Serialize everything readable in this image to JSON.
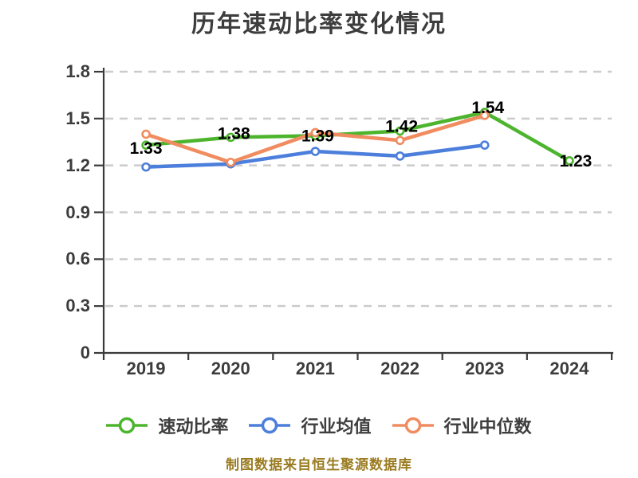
{
  "header": {
    "title": "历年速动比率变化情况"
  },
  "footer": {
    "text": "制图数据来自恒生聚源数据库",
    "color": "#9A7B20"
  },
  "colors": {
    "background": "#FFFFFF",
    "title": "#3D3D3D",
    "axis": "#3A3A3A",
    "grid": "#CCCCCC",
    "tick_label": "#3C3C3C",
    "data_label": "#000000",
    "legend_text": "#3E3E3E",
    "point_fill": "#FFFFFF"
  },
  "chart_data": {
    "type": "line",
    "title": "历年速动比率变化情况",
    "categories": [
      "2019",
      "2020",
      "2021",
      "2022",
      "2023",
      "2024"
    ],
    "series": [
      {
        "key": "quick-ratio",
        "name": "速动比率",
        "color": "#4DB52D",
        "values": [
          1.33,
          1.38,
          1.39,
          1.42,
          1.54,
          1.23
        ],
        "labels": [
          "1.33",
          "1.38",
          "1.39",
          "1.42",
          "1.54",
          "1.23"
        ]
      },
      {
        "key": "industry-average",
        "name": "行业均值",
        "color": "#4C7EDB",
        "values": [
          1.19,
          1.21,
          1.29,
          1.26,
          1.33,
          null
        ],
        "labels": null
      },
      {
        "key": "industry-median",
        "name": "行业中位数",
        "color": "#F08C60",
        "values": [
          1.4,
          1.22,
          1.41,
          1.36,
          1.52,
          null
        ],
        "labels": null
      }
    ],
    "ylim": [
      0,
      1.8
    ],
    "ytick_labels": [
      "0",
      "0.3",
      "0.6",
      "0.9",
      "1.2",
      "1.5",
      "1.8"
    ],
    "xlabel": "",
    "ylabel": "",
    "grid": "horizontal-dashed",
    "legend_position": "bottom",
    "point_style": "hollow-circle"
  }
}
